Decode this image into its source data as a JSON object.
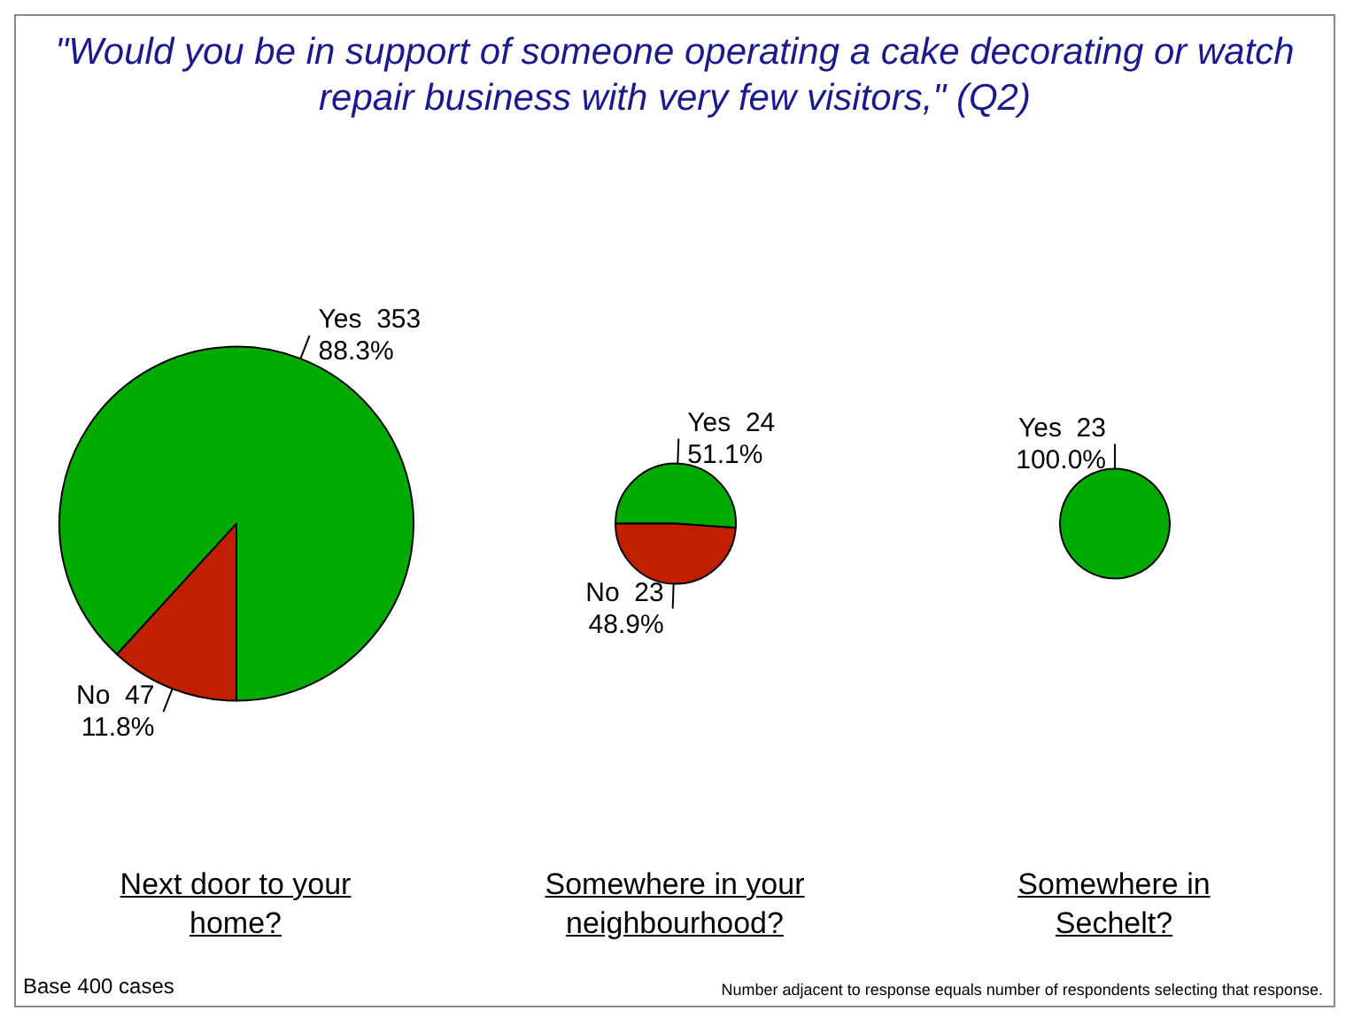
{
  "chart_data": [
    {
      "type": "pie",
      "title": "\"Would you be in support of someone operating a cake decorating or watch repair business with very few visitors,\" (Q2)",
      "xlabel": "Next door to your home?",
      "categories": [
        "Yes  353",
        "No  47"
      ],
      "values": [
        88.3,
        11.8
      ],
      "colors": [
        "#00aa00",
        "#c02000"
      ],
      "value_labels": [
        "88.3%",
        "11.8%"
      ],
      "annotations": [
        "Base 400 cases"
      ]
    },
    {
      "type": "pie",
      "xlabel": "Somewhere in your neighbourhood?",
      "categories": [
        "Yes  24",
        "No  23"
      ],
      "values": [
        51.1,
        48.9
      ],
      "colors": [
        "#00aa00",
        "#c02000"
      ],
      "value_labels": [
        "51.1%",
        "48.9%"
      ]
    },
    {
      "type": "pie",
      "xlabel": "Somewhere in Sechelt?",
      "categories": [
        "Yes  23"
      ],
      "values": [
        100
      ],
      "colors": [
        "#00aa00"
      ],
      "value_labels": [
        "100.0%"
      ],
      "annotations": [
        "Number adjacent to response equals number of respondents selecting that response."
      ]
    }
  ]
}
